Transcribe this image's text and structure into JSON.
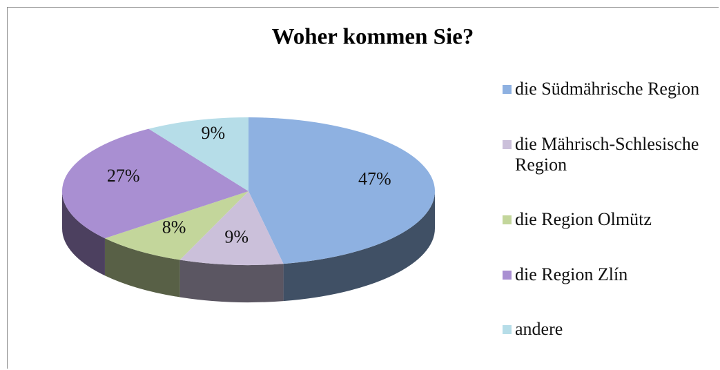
{
  "chart_data": {
    "type": "pie",
    "title": "Woher kommen Sie?",
    "categories": [
      "die Südmährische Region",
      "die Mährisch-Schlesische Region",
      "die Region Olmütz",
      "die Region Zlín",
      "andere"
    ],
    "values": [
      47,
      9,
      8,
      27,
      9
    ],
    "value_labels": [
      "47%",
      "9%",
      "8%",
      "27%",
      "9%"
    ],
    "colors": [
      "#8eb1e1",
      "#cbc0da",
      "#c3d69b",
      "#a98fd2",
      "#b6dde8"
    ],
    "legend": "right"
  }
}
